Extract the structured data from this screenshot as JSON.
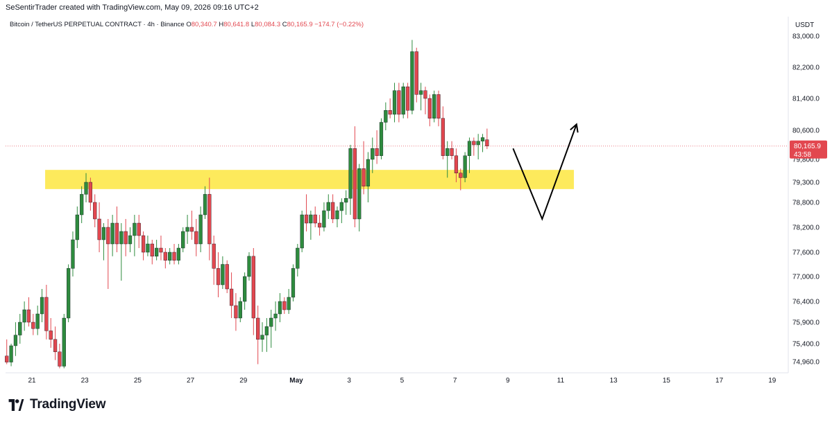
{
  "header": {
    "attribution": "SeSentirTrader created with TradingView.com, May 09, 2026 09:16 UTC+2"
  },
  "legend": {
    "symbol": "Bitcoin / TetherUS PERPETUAL CONTRACT · 4h · Binance",
    "o_label": "O",
    "o": "80,340.7",
    "h_label": "H",
    "h": "80,641.8",
    "l_label": "L",
    "l": "80,084.3",
    "c_label": "C",
    "c": "80,165.9",
    "change": "−174.7 (−0.22%)"
  },
  "footer": {
    "brand": "TradingView",
    "logo_icon": "tradingview-logo-icon"
  },
  "chart_data": {
    "type": "candlestick",
    "title": "Bitcoin / TetherUS PERPETUAL CONTRACT · 4h · Binance",
    "currency": "USDT",
    "y_axis_side": "right",
    "ylim": [
      74700,
      83300
    ],
    "y_ticks": [
      "83,000.0",
      "82,200.0",
      "81,400.0",
      "80,600.0",
      "79,800.0",
      "79,300.0",
      "78,800.0",
      "78,200.0",
      "77,600.0",
      "77,000.0",
      "76,400.0",
      "75,900.0",
      "75,400.0",
      "74,960.0"
    ],
    "x_ticks": [
      {
        "label": "21",
        "x": -0.5
      },
      {
        "label": "23",
        "x": 1.5
      },
      {
        "label": "25",
        "x": 3.5
      },
      {
        "label": "27",
        "x": 5.5
      },
      {
        "label": "29",
        "x": 7.5
      },
      {
        "label": "May",
        "x": 9.5
      },
      {
        "label": "3",
        "x": 11.5
      },
      {
        "label": "5",
        "x": 13.5
      },
      {
        "label": "7",
        "x": 15.5
      },
      {
        "label": "9",
        "x": 17.5
      },
      {
        "label": "11",
        "x": 19.5
      },
      {
        "label": "13",
        "x": 21.5
      },
      {
        "label": "15",
        "x": 23.5
      },
      {
        "label": "17",
        "x": 25.5
      },
      {
        "label": "19",
        "x": 27.5
      }
    ],
    "x_unit": "days since Apr 21 00:00 (4h candles)",
    "last_price": {
      "value": 80165.9,
      "label": "80,165.9",
      "countdown": "43:58",
      "color": "#e2474f"
    },
    "colors": {
      "up": "#2e8b3e",
      "down": "#e2474f",
      "zone": "#fde84a",
      "grid": "#f0f3fa",
      "text": "#131722"
    },
    "candles": [
      {
        "o": 75100,
        "h": 75500,
        "l": 74900,
        "c": 74950
      },
      {
        "o": 74950,
        "h": 75400,
        "l": 74850,
        "c": 75350
      },
      {
        "o": 75350,
        "h": 75900,
        "l": 75100,
        "c": 75600
      },
      {
        "o": 75600,
        "h": 76100,
        "l": 75400,
        "c": 75900
      },
      {
        "o": 75900,
        "h": 76400,
        "l": 75700,
        "c": 76200
      },
      {
        "o": 76200,
        "h": 76500,
        "l": 75800,
        "c": 75900
      },
      {
        "o": 75900,
        "h": 76100,
        "l": 75600,
        "c": 75750
      },
      {
        "o": 75750,
        "h": 76300,
        "l": 75600,
        "c": 76100
      },
      {
        "o": 76100,
        "h": 76700,
        "l": 75900,
        "c": 76500
      },
      {
        "o": 76500,
        "h": 76800,
        "l": 75500,
        "c": 75700
      },
      {
        "o": 75700,
        "h": 76000,
        "l": 75300,
        "c": 75500
      },
      {
        "o": 75500,
        "h": 75800,
        "l": 75000,
        "c": 75200
      },
      {
        "o": 75200,
        "h": 75400,
        "l": 74800,
        "c": 74850
      },
      {
        "o": 74850,
        "h": 76100,
        "l": 74800,
        "c": 76000
      },
      {
        "o": 76000,
        "h": 77300,
        "l": 75900,
        "c": 77200
      },
      {
        "o": 77200,
        "h": 78100,
        "l": 77000,
        "c": 77900
      },
      {
        "o": 77900,
        "h": 78700,
        "l": 77700,
        "c": 78500
      },
      {
        "o": 78500,
        "h": 79200,
        "l": 78300,
        "c": 79000
      },
      {
        "o": 79000,
        "h": 79500,
        "l": 78800,
        "c": 79300
      },
      {
        "o": 79300,
        "h": 79400,
        "l": 78600,
        "c": 78800
      },
      {
        "o": 78800,
        "h": 79000,
        "l": 78200,
        "c": 78400
      },
      {
        "o": 78400,
        "h": 78800,
        "l": 77600,
        "c": 77900
      },
      {
        "o": 77900,
        "h": 78300,
        "l": 77400,
        "c": 78200
      },
      {
        "o": 78200,
        "h": 78400,
        "l": 76700,
        "c": 77800
      },
      {
        "o": 77800,
        "h": 78500,
        "l": 77500,
        "c": 78300
      },
      {
        "o": 78300,
        "h": 78700,
        "l": 77600,
        "c": 77800
      },
      {
        "o": 77800,
        "h": 78300,
        "l": 76900,
        "c": 78100
      },
      {
        "o": 78100,
        "h": 78400,
        "l": 77500,
        "c": 77800
      },
      {
        "o": 77800,
        "h": 78200,
        "l": 77600,
        "c": 78000
      },
      {
        "o": 78000,
        "h": 78500,
        "l": 77500,
        "c": 78300
      },
      {
        "o": 78300,
        "h": 78500,
        "l": 77700,
        "c": 78000
      },
      {
        "o": 78000,
        "h": 78100,
        "l": 77400,
        "c": 77600
      },
      {
        "o": 77600,
        "h": 78000,
        "l": 77500,
        "c": 77800
      },
      {
        "o": 77800,
        "h": 77900,
        "l": 77300,
        "c": 77500
      },
      {
        "o": 77500,
        "h": 77900,
        "l": 77400,
        "c": 77700
      },
      {
        "o": 77700,
        "h": 78000,
        "l": 77400,
        "c": 77600
      },
      {
        "o": 77600,
        "h": 77700,
        "l": 77200,
        "c": 77400
      },
      {
        "o": 77400,
        "h": 77700,
        "l": 77300,
        "c": 77600
      },
      {
        "o": 77600,
        "h": 77800,
        "l": 77300,
        "c": 77400
      },
      {
        "o": 77400,
        "h": 77800,
        "l": 77300,
        "c": 77700
      },
      {
        "o": 77700,
        "h": 78200,
        "l": 77600,
        "c": 78100
      },
      {
        "o": 78100,
        "h": 78500,
        "l": 77800,
        "c": 78200
      },
      {
        "o": 78200,
        "h": 78600,
        "l": 77900,
        "c": 78100
      },
      {
        "o": 78100,
        "h": 78400,
        "l": 77500,
        "c": 77800
      },
      {
        "o": 77800,
        "h": 78700,
        "l": 77600,
        "c": 78500
      },
      {
        "o": 78500,
        "h": 79200,
        "l": 78400,
        "c": 79000
      },
      {
        "o": 79000,
        "h": 79400,
        "l": 77400,
        "c": 77800
      },
      {
        "o": 77800,
        "h": 78000,
        "l": 76800,
        "c": 77200
      },
      {
        "o": 77200,
        "h": 77600,
        "l": 76500,
        "c": 76800
      },
      {
        "o": 76800,
        "h": 77500,
        "l": 76700,
        "c": 77300
      },
      {
        "o": 77300,
        "h": 77400,
        "l": 76600,
        "c": 76700
      },
      {
        "o": 76700,
        "h": 77100,
        "l": 76000,
        "c": 76300
      },
      {
        "o": 76300,
        "h": 76600,
        "l": 75700,
        "c": 76000
      },
      {
        "o": 76000,
        "h": 76500,
        "l": 75900,
        "c": 76400
      },
      {
        "o": 76400,
        "h": 77100,
        "l": 76200,
        "c": 77000
      },
      {
        "o": 77000,
        "h": 77600,
        "l": 76900,
        "c": 77500
      },
      {
        "o": 77500,
        "h": 77700,
        "l": 75600,
        "c": 76000
      },
      {
        "o": 76000,
        "h": 76300,
        "l": 74900,
        "c": 75500
      },
      {
        "o": 75500,
        "h": 75900,
        "l": 75200,
        "c": 75600
      },
      {
        "o": 75600,
        "h": 76000,
        "l": 75200,
        "c": 75800
      },
      {
        "o": 75800,
        "h": 76200,
        "l": 75300,
        "c": 76000
      },
      {
        "o": 76000,
        "h": 76400,
        "l": 75700,
        "c": 76100
      },
      {
        "o": 76100,
        "h": 76600,
        "l": 75900,
        "c": 76400
      },
      {
        "o": 76400,
        "h": 76500,
        "l": 76100,
        "c": 76200
      },
      {
        "o": 76200,
        "h": 76700,
        "l": 76100,
        "c": 76500
      },
      {
        "o": 76500,
        "h": 77300,
        "l": 76400,
        "c": 77200
      },
      {
        "o": 77200,
        "h": 77800,
        "l": 77000,
        "c": 77700
      },
      {
        "o": 77700,
        "h": 78600,
        "l": 77600,
        "c": 78500
      },
      {
        "o": 78500,
        "h": 79000,
        "l": 78100,
        "c": 78300
      },
      {
        "o": 78300,
        "h": 78600,
        "l": 77900,
        "c": 78500
      },
      {
        "o": 78500,
        "h": 78700,
        "l": 78200,
        "c": 78300
      },
      {
        "o": 78300,
        "h": 78500,
        "l": 78000,
        "c": 78200
      },
      {
        "o": 78200,
        "h": 78800,
        "l": 78100,
        "c": 78600
      },
      {
        "o": 78600,
        "h": 79000,
        "l": 78400,
        "c": 78800
      },
      {
        "o": 78800,
        "h": 79000,
        "l": 78300,
        "c": 78400
      },
      {
        "o": 78400,
        "h": 78700,
        "l": 78200,
        "c": 78600
      },
      {
        "o": 78600,
        "h": 78900,
        "l": 78300,
        "c": 78800
      },
      {
        "o": 78800,
        "h": 79100,
        "l": 78500,
        "c": 78900
      },
      {
        "o": 78900,
        "h": 80200,
        "l": 78500,
        "c": 80100
      },
      {
        "o": 80100,
        "h": 80700,
        "l": 78200,
        "c": 78400
      },
      {
        "o": 78400,
        "h": 79700,
        "l": 78100,
        "c": 79600
      },
      {
        "o": 79600,
        "h": 80300,
        "l": 79000,
        "c": 79200
      },
      {
        "o": 79200,
        "h": 80000,
        "l": 78800,
        "c": 79800
      },
      {
        "o": 79800,
        "h": 80400,
        "l": 79500,
        "c": 80100
      },
      {
        "o": 80100,
        "h": 80600,
        "l": 79700,
        "c": 79900
      },
      {
        "o": 79900,
        "h": 80900,
        "l": 79800,
        "c": 80800
      },
      {
        "o": 80800,
        "h": 81300,
        "l": 80600,
        "c": 81100
      },
      {
        "o": 81100,
        "h": 81400,
        "l": 80900,
        "c": 81000
      },
      {
        "o": 81000,
        "h": 81800,
        "l": 80800,
        "c": 81600
      },
      {
        "o": 81600,
        "h": 81800,
        "l": 80800,
        "c": 81000
      },
      {
        "o": 81000,
        "h": 81800,
        "l": 80900,
        "c": 81700
      },
      {
        "o": 81700,
        "h": 81800,
        "l": 80900,
        "c": 81100
      },
      {
        "o": 81100,
        "h": 82900,
        "l": 81000,
        "c": 82600
      },
      {
        "o": 82600,
        "h": 82700,
        "l": 81300,
        "c": 81500
      },
      {
        "o": 81500,
        "h": 81800,
        "l": 81100,
        "c": 81600
      },
      {
        "o": 81600,
        "h": 81700,
        "l": 81000,
        "c": 81400
      },
      {
        "o": 81400,
        "h": 81500,
        "l": 80700,
        "c": 80900
      },
      {
        "o": 80900,
        "h": 81600,
        "l": 80800,
        "c": 81500
      },
      {
        "o": 81500,
        "h": 81600,
        "l": 80700,
        "c": 80900
      },
      {
        "o": 80900,
        "h": 81200,
        "l": 79800,
        "c": 79900
      },
      {
        "o": 79900,
        "h": 80300,
        "l": 79400,
        "c": 80100
      },
      {
        "o": 80100,
        "h": 80300,
        "l": 79800,
        "c": 79900
      },
      {
        "o": 79900,
        "h": 80100,
        "l": 79300,
        "c": 79500
      },
      {
        "o": 79500,
        "h": 79600,
        "l": 79100,
        "c": 79400
      },
      {
        "o": 79400,
        "h": 80000,
        "l": 79300,
        "c": 79900
      },
      {
        "o": 79900,
        "h": 80400,
        "l": 79500,
        "c": 80300
      },
      {
        "o": 80300,
        "h": 80400,
        "l": 79900,
        "c": 80200
      },
      {
        "o": 80200,
        "h": 80500,
        "l": 79800,
        "c": 80300
      },
      {
        "o": 80300,
        "h": 80500,
        "l": 80000,
        "c": 80400
      },
      {
        "o": 80340.7,
        "h": 80641.8,
        "l": 80084.3,
        "c": 80165.9
      }
    ],
    "annotations": {
      "support_zone": {
        "y_from": 79130,
        "y_to": 79570,
        "x_from": 0,
        "x_to": 20.0,
        "color": "#fde84a"
      },
      "projection_path": [
        {
          "x": 17.7,
          "y": 80100
        },
        {
          "x": 18.8,
          "y": 78400
        },
        {
          "x": 20.1,
          "y": 80750
        }
      ],
      "arrow_color": "#000000"
    }
  }
}
